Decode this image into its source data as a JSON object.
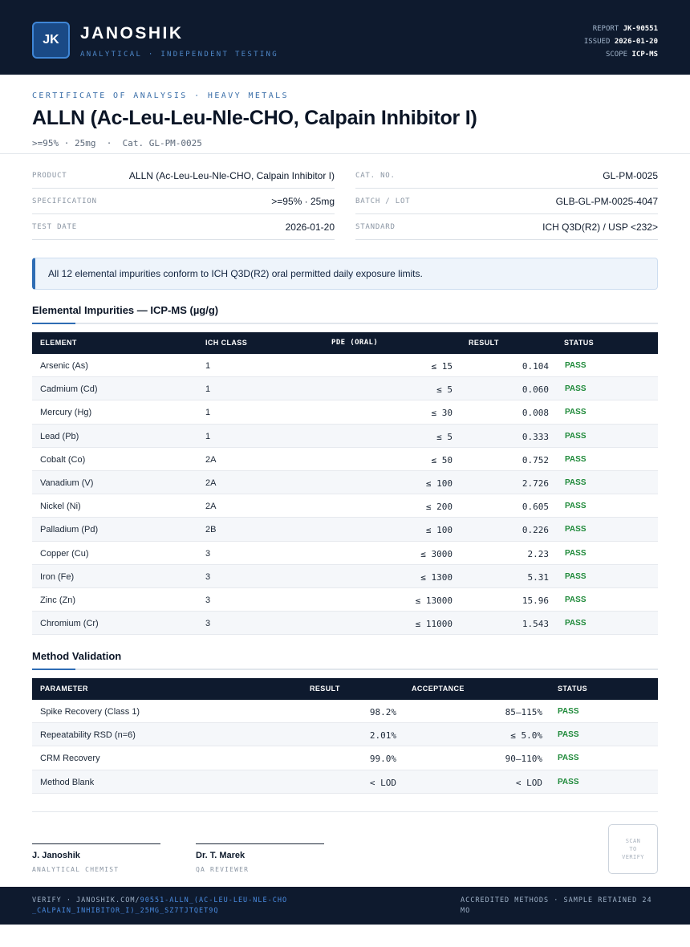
{
  "header": {
    "logo": "JK",
    "brand": "JANOSHIK",
    "tagline": "ANALYTICAL · INDEPENDENT TESTING",
    "report_label": "REPORT",
    "report_value": "JK-90551",
    "issued_label": "ISSUED",
    "issued_value": "2026-01-20",
    "scope_label": "SCOPE",
    "scope_value": "ICP-MS"
  },
  "title_section": {
    "kicker": "CERTIFICATE OF ANALYSIS · HEAVY METALS",
    "title": "ALLN (Ac-Leu-Leu-Nle-CHO, Calpain Inhibitor I)",
    "subtitle": ">=95% · 25mg  ·  Cat. GL-PM-0025"
  },
  "info": {
    "product_label": "PRODUCT",
    "product_value": "ALLN (Ac-Leu-Leu-Nle-CHO, Calpain Inhibitor I)",
    "spec_label": "SPECIFICATION",
    "spec_value": ">=95% · 25mg",
    "date_label": "TEST DATE",
    "date_value": "2026-01-20",
    "cat_label": "CAT. NO.",
    "cat_value": "GL-PM-0025",
    "batch_label": "BATCH / LOT",
    "batch_value": "GLB-GL-PM-0025-4047",
    "standard_label": "STANDARD",
    "standard_value": "ICH Q3D(R2) / USP <232>"
  },
  "callout": "All 12 elemental impurities conform to ICH Q3D(R2) oral permitted daily exposure limits.",
  "impurities": {
    "title": "Elemental Impurities — ICP-MS (µg/g)",
    "headers": [
      "ELEMENT",
      "ICH CLASS",
      "PDE (ORAL)",
      "RESULT",
      "STATUS"
    ],
    "rows": [
      {
        "element": "Arsenic (As)",
        "class": "1",
        "pde": "≤ 15",
        "result": "0.104",
        "status": "PASS"
      },
      {
        "element": "Cadmium (Cd)",
        "class": "1",
        "pde": "≤ 5",
        "result": "0.060",
        "status": "PASS"
      },
      {
        "element": "Mercury (Hg)",
        "class": "1",
        "pde": "≤ 30",
        "result": "0.008",
        "status": "PASS"
      },
      {
        "element": "Lead (Pb)",
        "class": "1",
        "pde": "≤ 5",
        "result": "0.333",
        "status": "PASS"
      },
      {
        "element": "Cobalt (Co)",
        "class": "2A",
        "pde": "≤ 50",
        "result": "0.752",
        "status": "PASS"
      },
      {
        "element": "Vanadium (V)",
        "class": "2A",
        "pde": "≤ 100",
        "result": "2.726",
        "status": "PASS"
      },
      {
        "element": "Nickel (Ni)",
        "class": "2A",
        "pde": "≤ 200",
        "result": "0.605",
        "status": "PASS"
      },
      {
        "element": "Palladium (Pd)",
        "class": "2B",
        "pde": "≤ 100",
        "result": "0.226",
        "status": "PASS"
      },
      {
        "element": "Copper (Cu)",
        "class": "3",
        "pde": "≤ 3000",
        "result": "2.23",
        "status": "PASS"
      },
      {
        "element": "Iron (Fe)",
        "class": "3",
        "pde": "≤ 1300",
        "result": "5.31",
        "status": "PASS"
      },
      {
        "element": "Zinc (Zn)",
        "class": "3",
        "pde": "≤ 13000",
        "result": "15.96",
        "status": "PASS"
      },
      {
        "element": "Chromium (Cr)",
        "class": "3",
        "pde": "≤ 11000",
        "result": "1.543",
        "status": "PASS"
      }
    ]
  },
  "validation": {
    "title": "Method Validation",
    "headers": [
      "PARAMETER",
      "RESULT",
      "ACCEPTANCE",
      "STATUS"
    ],
    "rows": [
      {
        "parameter": "Spike Recovery (Class 1)",
        "result": "98.2%",
        "acceptance": "85–115%",
        "status": "PASS"
      },
      {
        "parameter": "Repeatability RSD (n=6)",
        "result": "2.01%",
        "acceptance": "≤ 5.0%",
        "status": "PASS"
      },
      {
        "parameter": "CRM Recovery",
        "result": "99.0%",
        "acceptance": "90–110%",
        "status": "PASS"
      },
      {
        "parameter": "Method Blank",
        "result": "< LOD",
        "acceptance": "< LOD",
        "status": "PASS"
      }
    ]
  },
  "signatures": [
    {
      "name": "J. Janoshik",
      "role": "ANALYTICAL CHEMIST"
    },
    {
      "name": "Dr. T. Marek",
      "role": "QA REVIEWER"
    }
  ],
  "stamp": {
    "line1": "SCAN",
    "line2": "TO",
    "line3": "VERIFY"
  },
  "footer": {
    "verify_prefix": "VERIFY · JANOSHIK.COM/",
    "verify_link": "90551-ALLN_(AC-LEU-LEU-NLE-CHO_CALPAIN_INHIBITOR_I)_25MG_SZ7TJTQET9Q",
    "right": "ACCREDITED METHODS · SAMPLE RETAINED 24 MO"
  },
  "colors": {
    "navy": "#0e1a2e",
    "accent": "#2f6db4",
    "pass": "#1f8a3a"
  }
}
